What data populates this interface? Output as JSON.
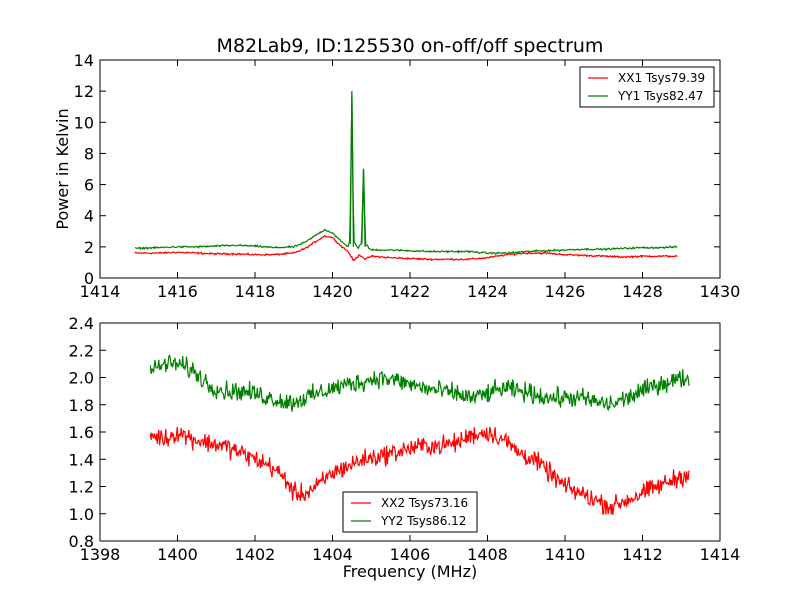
{
  "chart_data": [
    {
      "type": "line",
      "title": "M82Lab9, ID:125530 on-off/off spectrum",
      "xlabel": "",
      "ylabel": "Power in Kelvin",
      "xlim": [
        1414,
        1430
      ],
      "ylim": [
        0,
        14
      ],
      "xticks": [
        "1414",
        "1416",
        "1418",
        "1420",
        "1422",
        "1424",
        "1426",
        "1428",
        "1430"
      ],
      "yticks": [
        "0",
        "2",
        "4",
        "6",
        "8",
        "10",
        "12",
        "14"
      ],
      "legend_position": "top-right",
      "series": [
        {
          "name": "XX1 Tsys79.39",
          "color": "#ff0000",
          "x": [
            1414.9,
            1415.5,
            1416.0,
            1416.5,
            1417.0,
            1417.5,
            1418.0,
            1418.5,
            1419.0,
            1419.3,
            1419.6,
            1419.8,
            1420.0,
            1420.2,
            1420.4,
            1420.55,
            1420.7,
            1420.85,
            1421.0,
            1421.5,
            1422.0,
            1422.5,
            1423.0,
            1423.5,
            1424.0,
            1424.5,
            1425.0,
            1425.5,
            1426.0,
            1426.5,
            1427.0,
            1427.5,
            1428.0,
            1428.5,
            1428.9
          ],
          "y": [
            1.6,
            1.6,
            1.65,
            1.6,
            1.55,
            1.55,
            1.5,
            1.5,
            1.6,
            1.9,
            2.4,
            2.7,
            2.6,
            2.1,
            1.7,
            1.1,
            1.5,
            1.2,
            1.4,
            1.3,
            1.25,
            1.2,
            1.2,
            1.2,
            1.3,
            1.5,
            1.6,
            1.6,
            1.5,
            1.45,
            1.4,
            1.35,
            1.4,
            1.4,
            1.4
          ]
        },
        {
          "name": "YY1 Tsys82.47",
          "color": "#008000",
          "x": [
            1414.9,
            1415.5,
            1416.0,
            1416.5,
            1417.0,
            1417.5,
            1418.0,
            1418.5,
            1419.0,
            1419.3,
            1419.6,
            1419.8,
            1420.0,
            1420.2,
            1420.4,
            1420.45,
            1420.5,
            1420.55,
            1420.65,
            1420.75,
            1420.8,
            1420.85,
            1420.95,
            1421.0,
            1421.5,
            1422.0,
            1422.5,
            1423.0,
            1423.5,
            1424.0,
            1424.5,
            1425.0,
            1425.5,
            1426.0,
            1426.5,
            1427.0,
            1427.5,
            1428.0,
            1428.5,
            1428.9
          ],
          "y": [
            1.9,
            1.95,
            2.0,
            2.0,
            2.05,
            2.1,
            2.05,
            1.95,
            2.0,
            2.3,
            2.8,
            3.1,
            2.9,
            2.4,
            2.0,
            2.5,
            12.0,
            2.4,
            1.9,
            2.2,
            7.0,
            2.2,
            1.9,
            1.8,
            1.8,
            1.75,
            1.7,
            1.7,
            1.7,
            1.6,
            1.6,
            1.7,
            1.75,
            1.8,
            1.85,
            1.85,
            1.9,
            1.95,
            1.95,
            2.0
          ]
        }
      ]
    },
    {
      "type": "line",
      "title": "",
      "xlabel": "Frequency (MHz)",
      "ylabel": "",
      "xlim": [
        1398,
        1414
      ],
      "ylim": [
        0.8,
        2.4
      ],
      "xticks": [
        "1398",
        "1400",
        "1402",
        "1404",
        "1406",
        "1408",
        "1410",
        "1412",
        "1414"
      ],
      "yticks": [
        "0.8",
        "1.0",
        "1.2",
        "1.4",
        "1.6",
        "1.8",
        "2.0",
        "2.2",
        "2.4"
      ],
      "legend_position": "lower-center",
      "series": [
        {
          "name": "XX2 Tsys73.16",
          "color": "#ff0000",
          "x": [
            1399.3,
            1399.7,
            1400.0,
            1400.4,
            1400.8,
            1401.2,
            1401.6,
            1402.0,
            1402.4,
            1402.8,
            1403.0,
            1403.3,
            1403.6,
            1404.0,
            1404.4,
            1404.8,
            1405.2,
            1405.6,
            1406.0,
            1406.4,
            1406.8,
            1407.2,
            1407.6,
            1408.0,
            1408.4,
            1408.8,
            1409.2,
            1409.6,
            1410.0,
            1410.4,
            1410.8,
            1411.2,
            1411.6,
            1412.0,
            1412.4,
            1412.8,
            1413.2
          ],
          "y": [
            1.58,
            1.55,
            1.6,
            1.55,
            1.52,
            1.5,
            1.45,
            1.4,
            1.35,
            1.25,
            1.15,
            1.15,
            1.2,
            1.3,
            1.35,
            1.4,
            1.42,
            1.45,
            1.48,
            1.5,
            1.5,
            1.52,
            1.58,
            1.6,
            1.55,
            1.45,
            1.4,
            1.3,
            1.2,
            1.15,
            1.1,
            1.05,
            1.1,
            1.15,
            1.2,
            1.25,
            1.3
          ]
        },
        {
          "name": "YY2 Tsys86.12",
          "color": "#008000",
          "x": [
            1399.3,
            1399.7,
            1400.0,
            1400.4,
            1400.8,
            1401.2,
            1401.6,
            1402.0,
            1402.4,
            1402.8,
            1403.0,
            1403.3,
            1403.6,
            1404.0,
            1404.4,
            1404.8,
            1405.2,
            1405.6,
            1406.0,
            1406.4,
            1406.8,
            1407.2,
            1407.6,
            1408.0,
            1408.4,
            1408.8,
            1409.2,
            1409.6,
            1410.0,
            1410.4,
            1410.8,
            1411.2,
            1411.6,
            1412.0,
            1412.4,
            1412.8,
            1413.2
          ],
          "y": [
            2.05,
            2.1,
            2.1,
            2.05,
            1.95,
            1.9,
            1.9,
            1.88,
            1.85,
            1.82,
            1.82,
            1.85,
            1.88,
            1.92,
            1.95,
            1.97,
            2.0,
            1.98,
            1.95,
            1.92,
            1.9,
            1.88,
            1.85,
            1.88,
            1.92,
            1.9,
            1.88,
            1.85,
            1.85,
            1.85,
            1.82,
            1.8,
            1.85,
            1.9,
            1.95,
            1.98,
            2.0
          ]
        }
      ]
    }
  ]
}
